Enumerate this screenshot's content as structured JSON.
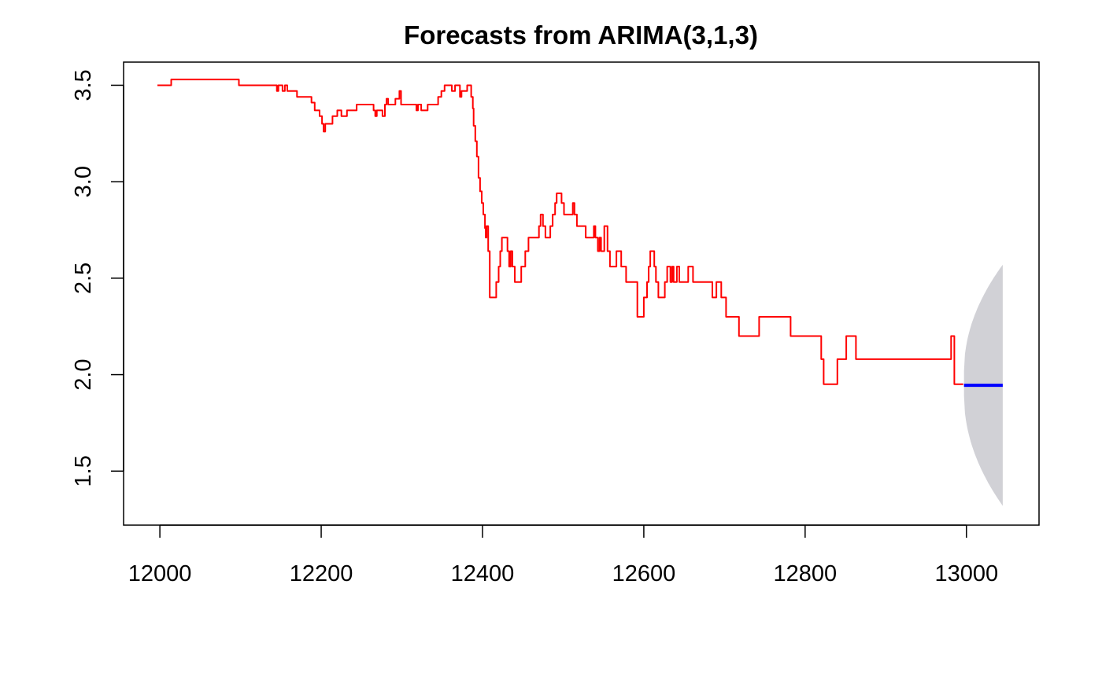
{
  "chart_data": {
    "type": "line",
    "title": "Forecasts from ARIMA(3,1,3)",
    "xlabel": "",
    "ylabel": "",
    "xlim": [
      11955,
      13090
    ],
    "ylim": [
      1.22,
      3.62
    ],
    "x_ticks": [
      12000,
      12200,
      12400,
      12600,
      12800,
      13000
    ],
    "y_ticks": [
      1.5,
      2.0,
      2.5,
      3.0,
      3.5
    ],
    "grid": false,
    "legend": "none",
    "series": [
      {
        "role": "observed",
        "color": "#ff0000",
        "step": true,
        "points": [
          [
            11997,
            3.5
          ],
          [
            12014,
            3.53
          ],
          [
            12098,
            3.5
          ],
          [
            12145,
            3.47
          ],
          [
            12147,
            3.5
          ],
          [
            12152,
            3.47
          ],
          [
            12155,
            3.5
          ],
          [
            12158,
            3.47
          ],
          [
            12170,
            3.44
          ],
          [
            12188,
            3.41
          ],
          [
            12192,
            3.37
          ],
          [
            12198,
            3.34
          ],
          [
            12201,
            3.3
          ],
          [
            12203,
            3.26
          ],
          [
            12205,
            3.3
          ],
          [
            12214,
            3.34
          ],
          [
            12220,
            3.37
          ],
          [
            12225,
            3.34
          ],
          [
            12232,
            3.37
          ],
          [
            12244,
            3.4
          ],
          [
            12265,
            3.37
          ],
          [
            12267,
            3.34
          ],
          [
            12269,
            3.37
          ],
          [
            12276,
            3.34
          ],
          [
            12279,
            3.4
          ],
          [
            12281,
            3.43
          ],
          [
            12283,
            3.4
          ],
          [
            12292,
            3.43
          ],
          [
            12297,
            3.47
          ],
          [
            12299,
            3.4
          ],
          [
            12318,
            3.37
          ],
          [
            12320,
            3.4
          ],
          [
            12324,
            3.37
          ],
          [
            12332,
            3.4
          ],
          [
            12345,
            3.44
          ],
          [
            12349,
            3.47
          ],
          [
            12353,
            3.5
          ],
          [
            12362,
            3.47
          ],
          [
            12366,
            3.5
          ],
          [
            12372,
            3.44
          ],
          [
            12374,
            3.47
          ],
          [
            12381,
            3.5
          ],
          [
            12386,
            3.44
          ],
          [
            12388,
            3.38
          ],
          [
            12389,
            3.29
          ],
          [
            12391,
            3.21
          ],
          [
            12393,
            3.13
          ],
          [
            12395,
            3.02
          ],
          [
            12397,
            2.95
          ],
          [
            12399,
            2.89
          ],
          [
            12401,
            2.83
          ],
          [
            12403,
            2.76
          ],
          [
            12404,
            2.71
          ],
          [
            12405,
            2.77
          ],
          [
            12407,
            2.64
          ],
          [
            12409,
            2.4
          ],
          [
            12417,
            2.48
          ],
          [
            12420,
            2.56
          ],
          [
            12422,
            2.64
          ],
          [
            12424,
            2.71
          ],
          [
            12431,
            2.64
          ],
          [
            12433,
            2.56
          ],
          [
            12435,
            2.64
          ],
          [
            12437,
            2.56
          ],
          [
            12440,
            2.48
          ],
          [
            12448,
            2.56
          ],
          [
            12453,
            2.64
          ],
          [
            12457,
            2.71
          ],
          [
            12470,
            2.77
          ],
          [
            12472,
            2.83
          ],
          [
            12475,
            2.77
          ],
          [
            12478,
            2.71
          ],
          [
            12484,
            2.77
          ],
          [
            12487,
            2.83
          ],
          [
            12490,
            2.89
          ],
          [
            12492,
            2.94
          ],
          [
            12498,
            2.89
          ],
          [
            12501,
            2.83
          ],
          [
            12512,
            2.89
          ],
          [
            12514,
            2.83
          ],
          [
            12517,
            2.77
          ],
          [
            12528,
            2.71
          ],
          [
            12538,
            2.77
          ],
          [
            12540,
            2.71
          ],
          [
            12543,
            2.64
          ],
          [
            12545,
            2.71
          ],
          [
            12547,
            2.64
          ],
          [
            12551,
            2.77
          ],
          [
            12555,
            2.64
          ],
          [
            12558,
            2.56
          ],
          [
            12566,
            2.64
          ],
          [
            12572,
            2.56
          ],
          [
            12578,
            2.48
          ],
          [
            12592,
            2.3
          ],
          [
            12600,
            2.4
          ],
          [
            12604,
            2.48
          ],
          [
            12606,
            2.56
          ],
          [
            12608,
            2.64
          ],
          [
            12613,
            2.56
          ],
          [
            12615,
            2.48
          ],
          [
            12618,
            2.4
          ],
          [
            12626,
            2.48
          ],
          [
            12629,
            2.56
          ],
          [
            12633,
            2.48
          ],
          [
            12635,
            2.56
          ],
          [
            12637,
            2.48
          ],
          [
            12641,
            2.56
          ],
          [
            12644,
            2.48
          ],
          [
            12655,
            2.56
          ],
          [
            12661,
            2.48
          ],
          [
            12685,
            2.4
          ],
          [
            12690,
            2.48
          ],
          [
            12696,
            2.4
          ],
          [
            12702,
            2.3
          ],
          [
            12718,
            2.2
          ],
          [
            12743,
            2.3
          ],
          [
            12782,
            2.2
          ],
          [
            12820,
            2.08
          ],
          [
            12823,
            1.95
          ],
          [
            12840,
            2.08
          ],
          [
            12851,
            2.2
          ],
          [
            12863,
            2.08
          ],
          [
            12981,
            2.2
          ],
          [
            12985,
            1.95
          ],
          [
            12996,
            1.95
          ]
        ]
      },
      {
        "role": "forecast",
        "color": "#0000ff",
        "points": [
          [
            12997,
            1.945
          ],
          [
            13045,
            1.945
          ]
        ]
      }
    ],
    "intervals": [
      {
        "role": "prediction-interval",
        "color": "#d1d1d6",
        "x_start": 12997,
        "x_end": 13045,
        "lower_start": 1.89,
        "upper_start": 2.02,
        "lower_end": 1.32,
        "upper_end": 2.57
      }
    ]
  }
}
